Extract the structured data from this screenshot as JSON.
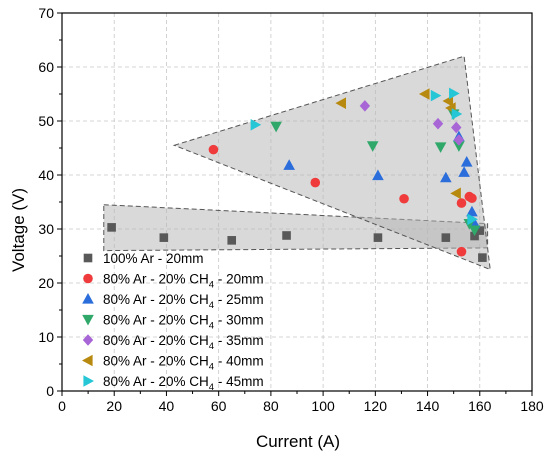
{
  "chart_data": {
    "type": "scatter",
    "title": "",
    "xlabel": "Current (A)",
    "ylabel": "Voltage (V)",
    "xlim": [
      0,
      180
    ],
    "ylim": [
      0,
      70
    ],
    "xticks": [
      0,
      20,
      40,
      60,
      80,
      100,
      120,
      140,
      160,
      180
    ],
    "yticks": [
      0,
      10,
      20,
      30,
      40,
      50,
      60,
      70
    ],
    "grid": "dashed",
    "legend_position": "bottom-left",
    "regions": [
      {
        "name": "",
        "fill": "#b4b4b4",
        "points": [
          [
            16,
            34.5
          ],
          [
            163,
            31
          ],
          [
            163,
            26.5
          ],
          [
            16,
            26
          ]
        ]
      },
      {
        "name": "",
        "fill": "#b4b4b4",
        "points": [
          [
            43,
            45.5
          ],
          [
            154,
            62
          ],
          [
            164,
            22.5
          ]
        ]
      }
    ],
    "series": [
      {
        "name": "100% Ar - 20mm",
        "name_parts": [
          "100% Ar - 20mm"
        ],
        "marker": "square",
        "color": "#595959",
        "points": [
          [
            19,
            30.3
          ],
          [
            39,
            28.4
          ],
          [
            65,
            27.9
          ],
          [
            86,
            28.8
          ],
          [
            121,
            28.4
          ],
          [
            147,
            28.4
          ],
          [
            158,
            28.7
          ],
          [
            160,
            29.7
          ],
          [
            161,
            24.7
          ]
        ]
      },
      {
        "name": "80% Ar - 20% CH4 - 20mm",
        "name_parts": [
          "80% Ar - 20% CH",
          "4",
          " - 20mm"
        ],
        "marker": "circle",
        "color": "#ef3b3b",
        "points": [
          [
            58,
            44.7
          ],
          [
            97,
            38.6
          ],
          [
            131,
            35.6
          ],
          [
            153,
            25.8
          ],
          [
            153,
            34.8
          ],
          [
            156,
            36.0
          ],
          [
            157,
            35.7
          ]
        ]
      },
      {
        "name": "80% Ar - 20% CH4 - 25mm",
        "name_parts": [
          "80% Ar - 20% CH",
          "4",
          " - 25mm"
        ],
        "marker": "triangle-up",
        "color": "#2a6ddb",
        "points": [
          [
            87,
            41.8
          ],
          [
            121,
            39.9
          ],
          [
            147,
            39.5
          ],
          [
            152,
            47.1
          ],
          [
            154,
            40.5
          ],
          [
            155,
            42.4
          ],
          [
            157,
            33.2
          ],
          [
            158,
            31.0
          ]
        ]
      },
      {
        "name": "80% Ar - 20% CH4 - 30mm",
        "name_parts": [
          "80% Ar - 20% CH",
          "4",
          " - 30mm"
        ],
        "marker": "triangle-down",
        "color": "#2fa86a",
        "points": [
          [
            82,
            49.0
          ],
          [
            119,
            45.4
          ],
          [
            145,
            45.2
          ],
          [
            150,
            51.3
          ],
          [
            152,
            45.4
          ],
          [
            156,
            31.0
          ],
          [
            158,
            29.8
          ]
        ]
      },
      {
        "name": "80% Ar - 20% CH4 - 35mm",
        "name_parts": [
          "80% Ar - 20% CH",
          "4",
          " - 35mm"
        ],
        "marker": "diamond",
        "color": "#a865d6",
        "points": [
          [
            116,
            52.8
          ],
          [
            144,
            49.5
          ],
          [
            151,
            48.8
          ],
          [
            152,
            46.5
          ]
        ]
      },
      {
        "name": "80% Ar - 20% CH4 - 40mm",
        "name_parts": [
          "80% Ar - 20% CH",
          "4",
          " - 40mm"
        ],
        "marker": "triangle-left",
        "color": "#b8890f",
        "points": [
          [
            107,
            53.3
          ],
          [
            139,
            55.0
          ],
          [
            148,
            53.7
          ],
          [
            149,
            52.4
          ],
          [
            151,
            36.6
          ]
        ]
      },
      {
        "name": "80% Ar - 20% CH4 - 45mm",
        "name_parts": [
          "80% Ar - 20% CH",
          "4",
          " - 45mm"
        ],
        "marker": "triangle-right",
        "color": "#25c6d6",
        "points": [
          [
            74,
            49.3
          ],
          [
            143,
            54.7
          ],
          [
            150,
            55.1
          ],
          [
            151,
            51.3
          ],
          [
            157,
            31.8
          ]
        ]
      }
    ]
  }
}
